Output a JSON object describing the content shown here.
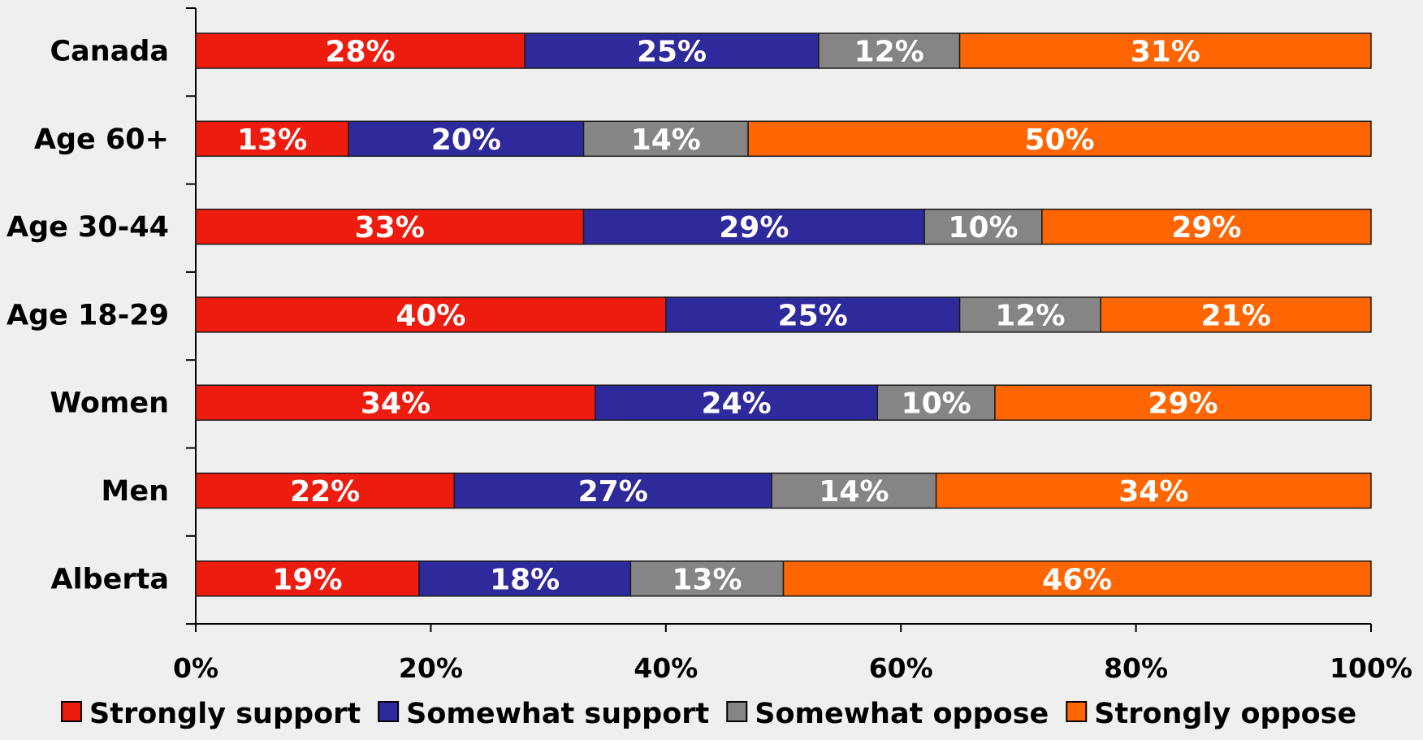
{
  "chart_data": {
    "type": "bar",
    "orientation": "horizontal",
    "stacked": true,
    "categories": [
      "Canada",
      "Age 60+",
      "Age 30-44",
      "Age 18-29",
      "Women",
      "Men",
      "Alberta"
    ],
    "series": [
      {
        "name": "Strongly support",
        "color": "#ee1c0f",
        "values": [
          28,
          13,
          33,
          40,
          34,
          22,
          19
        ],
        "labels": [
          "28%",
          "13%",
          "33%",
          "40%",
          "34%",
          "22%",
          "19%"
        ]
      },
      {
        "name": "Somewhat support",
        "color": "#2f2a9c",
        "values": [
          25,
          20,
          29,
          25,
          24,
          27,
          18
        ],
        "labels": [
          "25%",
          "20%",
          "29%",
          "25%",
          "24%",
          "27%",
          "18%"
        ]
      },
      {
        "name": "Somewhat oppose",
        "color": "#858585",
        "values": [
          12,
          14,
          10,
          12,
          10,
          14,
          13
        ],
        "labels": [
          "12%",
          "14%",
          "10%",
          "12%",
          "10%",
          "14%",
          "13%"
        ]
      },
      {
        "name": "Strongly oppose",
        "color": "#ff6500",
        "values": [
          31,
          50,
          29,
          21,
          29,
          34,
          46
        ],
        "labels": [
          "31%",
          "50%",
          "29%",
          "21%",
          "29%",
          "34%",
          "46%"
        ]
      }
    ],
    "xlim": [
      0,
      100
    ],
    "x_ticks": [
      0,
      20,
      40,
      60,
      80,
      100
    ],
    "x_tick_labels": [
      "0%",
      "20%",
      "40%",
      "60%",
      "80%",
      "100%"
    ],
    "title": "",
    "xlabel": "",
    "ylabel": "",
    "grid": false,
    "legend_position": "bottom"
  }
}
